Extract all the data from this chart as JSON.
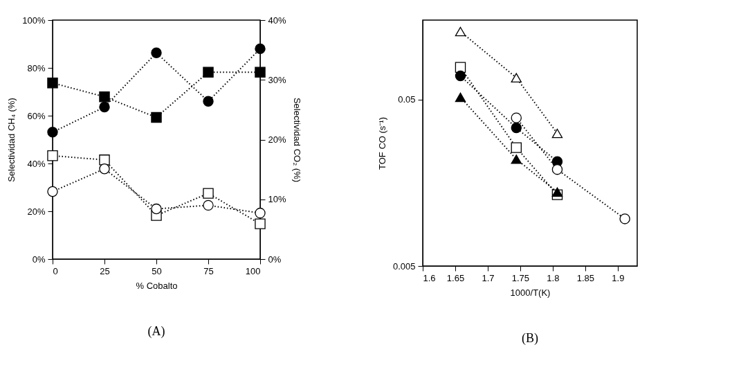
{
  "chart_data": [
    {
      "type": "line",
      "xlabel": "% Cobalto",
      "ylabel": "Selectividad CH₄ (%)",
      "y2label": "Selectividad CO₂ (%)",
      "x": [
        0,
        25,
        50,
        75,
        100
      ],
      "xlim": [
        0,
        100
      ],
      "xticks": [
        0,
        25,
        50,
        75,
        100
      ],
      "ylim": [
        0,
        100
      ],
      "yticks": [
        {
          "value": 0,
          "label": "0%"
        },
        {
          "value": 20,
          "label": "20%"
        },
        {
          "value": 40,
          "label": "40%"
        },
        {
          "value": 60,
          "label": "60%"
        },
        {
          "value": 80,
          "label": "80%"
        },
        {
          "value": 100,
          "label": "100%"
        }
      ],
      "y2lim": [
        0,
        40
      ],
      "y2ticks": [
        {
          "value": 0,
          "label": "0%"
        },
        {
          "value": 10,
          "label": "10%"
        },
        {
          "value": 20,
          "label": "20%"
        },
        {
          "value": 30,
          "label": "30%"
        },
        {
          "value": 40,
          "label": "40%"
        }
      ],
      "line_style": "dotted",
      "grid": false,
      "series": [
        {
          "color": "#000000",
          "marker": "circle",
          "values": [
            53.1,
            63.6,
            86.3,
            66.0,
            88.0
          ]
        },
        {
          "color": "#000000",
          "marker": "square",
          "values": [
            73.7,
            67.9,
            59.3,
            78.2,
            78.2
          ]
        },
        {
          "color": "#ffffff",
          "marker": "square",
          "axis": "y2",
          "values": [
            17.3,
            16.6,
            7.3,
            11.0,
            5.9
          ]
        },
        {
          "color": "#ffffff",
          "marker": "circle",
          "axis": "y2",
          "values": [
            11.3,
            15.1,
            8.4,
            9.0,
            7.7
          ]
        }
      ],
      "annotations": [
        "(A)"
      ]
    },
    {
      "type": "line",
      "xlabel": "1000/T(K)",
      "ylabel": "TOF CO (s⁻¹)",
      "log": "y",
      "xlim": [
        1.6,
        1.93
      ],
      "xticks": [
        1.6,
        1.65,
        1.7,
        1.75,
        1.8,
        1.85,
        1.9
      ],
      "ylim": [
        0.005,
        0.15
      ],
      "yticks": [
        0.005,
        0.05
      ],
      "line_style": "dotted",
      "grid": false,
      "series": [
        {
          "color": "#ffffff",
          "marker": "triangle",
          "x": [
            1.658,
            1.744,
            1.807
          ],
          "values": [
            0.128,
            0.0676,
            0.0313
          ]
        },
        {
          "color": "#ffffff",
          "marker": "square",
          "x": [
            1.658,
            1.744,
            1.807
          ],
          "values": [
            0.078,
            0.0257,
            0.0134
          ]
        },
        {
          "color": "#000000",
          "marker": "circle",
          "x": [
            1.658,
            1.744,
            1.807
          ],
          "values": [
            0.0693,
            0.0338,
            0.0212
          ]
        },
        {
          "color": "#000000",
          "marker": "triangle",
          "x": [
            1.658,
            1.744,
            1.807
          ],
          "values": [
            0.0516,
            0.0219,
            0.0139
          ]
        },
        {
          "color": "#ffffff",
          "marker": "circle",
          "x": [
            1.744,
            1.807,
            1.911
          ],
          "values": [
            0.0388,
            0.019,
            0.0096
          ]
        }
      ],
      "annotations": [
        "(B)"
      ]
    }
  ]
}
